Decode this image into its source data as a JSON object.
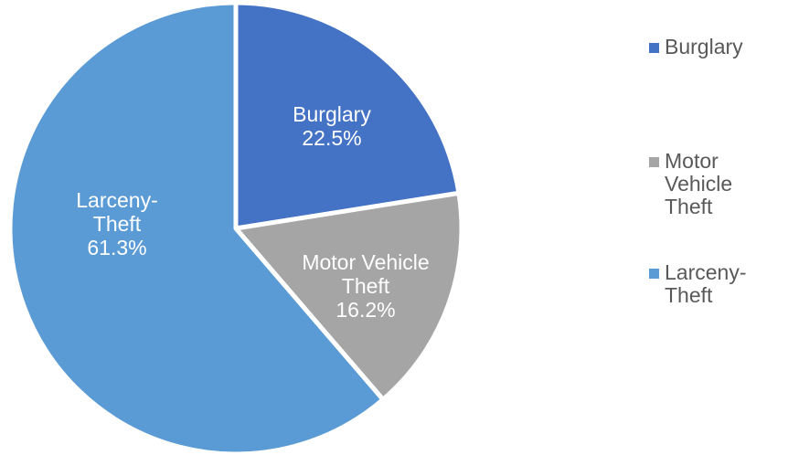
{
  "chart_data": {
    "type": "pie",
    "categories": [
      "Burglary",
      "Motor Vehicle Theft",
      "Larceny-Theft"
    ],
    "values": [
      22.5,
      16.2,
      61.3
    ],
    "units": "%",
    "data_labels": [
      [
        "Burglary",
        "22.5%"
      ],
      [
        "Motor Vehicle",
        "Theft",
        "16.2%"
      ],
      [
        "Larceny-",
        "Theft",
        "61.3%"
      ]
    ],
    "colors": [
      "#4472C4",
      "#A5A5A5",
      "#5B9BD5"
    ],
    "legend": {
      "position": "right",
      "entries": [
        [
          "Burglary"
        ],
        [
          "Motor",
          "Vehicle",
          "Theft"
        ],
        [
          "Larceny-",
          "Theft"
        ]
      ]
    }
  }
}
